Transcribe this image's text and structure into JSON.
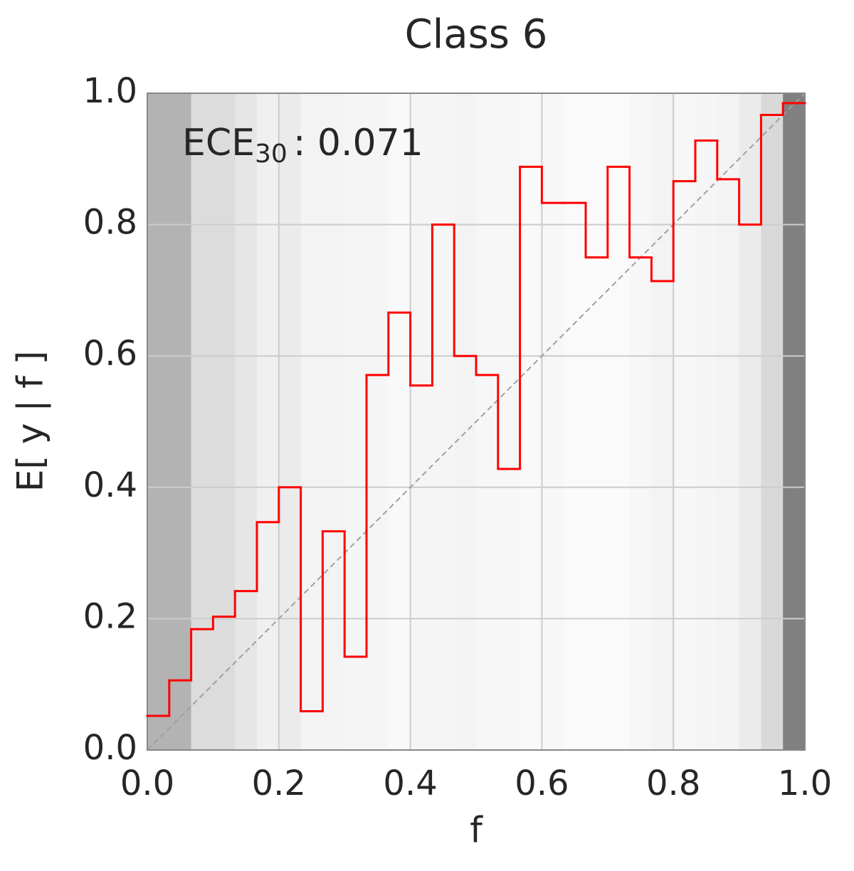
{
  "chart_data": {
    "type": "step",
    "title": "Class 6",
    "xlabel": "f",
    "ylabel": "E[ y | f ]",
    "annotation": {
      "label": "ECE",
      "subscript": "30",
      "text": ": 0.071"
    },
    "series": [
      {
        "name": "E[ y | f ]",
        "color": "#ff0000",
        "values": [
          0.052,
          0.106,
          0.184,
          0.203,
          0.242,
          0.347,
          0.4,
          0.059,
          0.333,
          0.142,
          0.571,
          0.666,
          0.555,
          0.8,
          0.6,
          0.571,
          0.428,
          0.888,
          0.833,
          0.833,
          0.75,
          0.888,
          0.75,
          0.714,
          0.866,
          0.928,
          0.869,
          0.8,
          0.967,
          0.985
        ]
      }
    ],
    "bin_colors": [
      "#b3b3b3",
      "#b3b3b3",
      "#dcdcdc",
      "#dcdcdc",
      "#e6e6e6",
      "#f0f0f0",
      "#ebebeb",
      "#f3f3f3",
      "#f3f3f3",
      "#f5f5f5",
      "#f5f5f5",
      "#f9f9f9",
      "#f5f5f5",
      "#f5f5f5",
      "#f3f3f3",
      "#f7f7f7",
      "#f7f7f7",
      "#f9f9f9",
      "#f7f7f7",
      "#fafafa",
      "#fafafa",
      "#fafafa",
      "#f7f7f7",
      "#f3f3f3",
      "#f7f7f7",
      "#f5f5f5",
      "#f3f3f3",
      "#ebebeb",
      "#d9d9d9",
      "#808080"
    ],
    "xlim": [
      0.0,
      1.0
    ],
    "ylim": [
      0.0,
      1.0
    ],
    "xticks": [
      {
        "value": 0,
        "label": "0.0"
      },
      0.2,
      0.4,
      0.6,
      0.8,
      {
        "value": 1,
        "label": "1.0"
      }
    ],
    "yticks": [
      {
        "value": 0,
        "label": "0.0"
      },
      0.2,
      0.4,
      0.6,
      0.8,
      {
        "value": 1,
        "label": "1.0"
      }
    ],
    "grid": true
  }
}
